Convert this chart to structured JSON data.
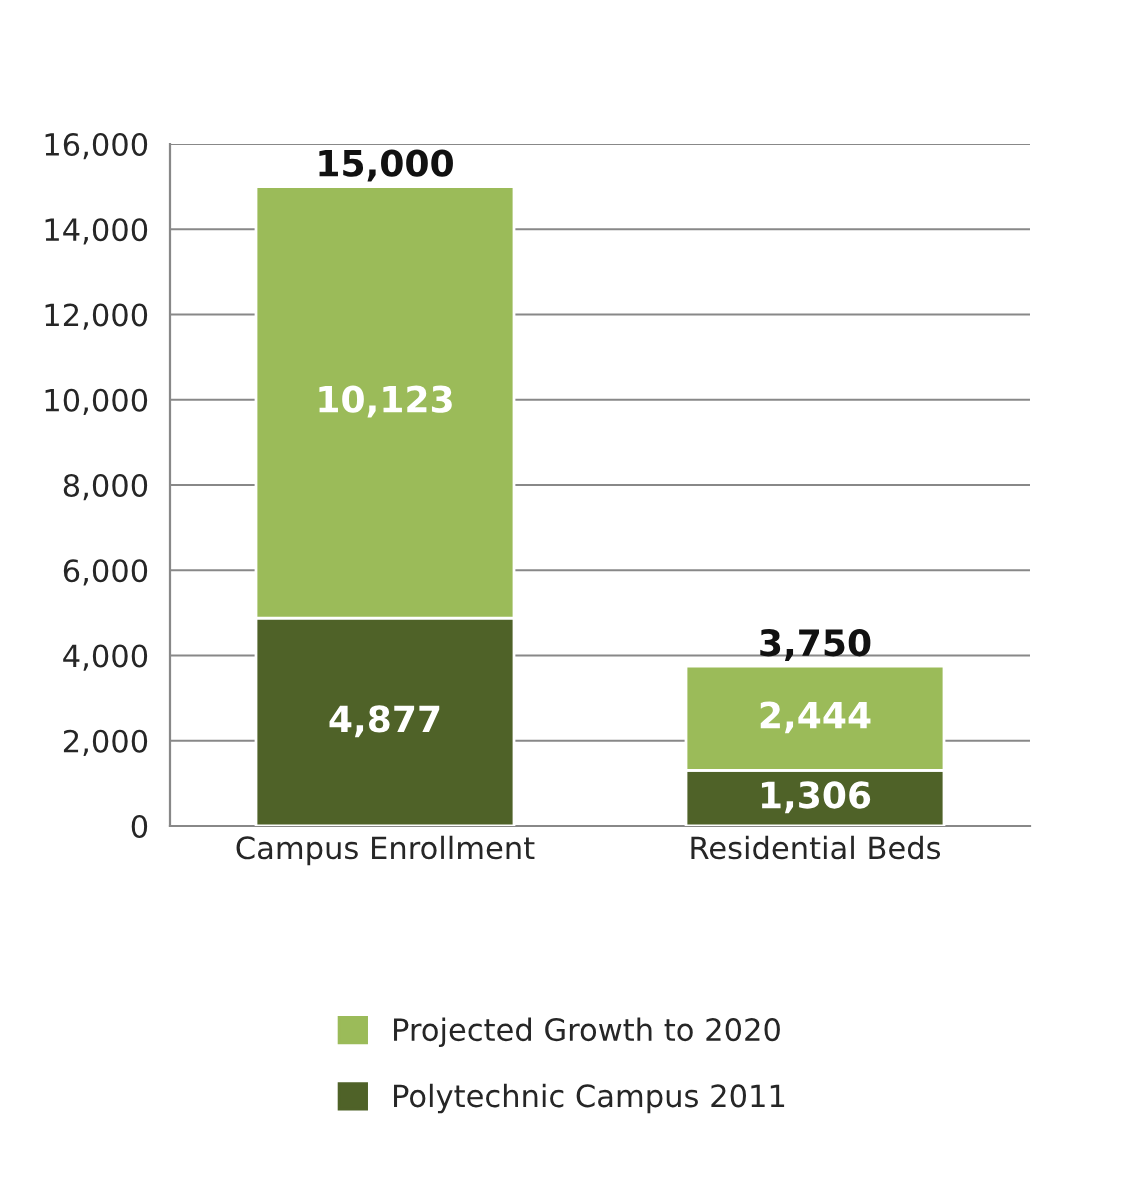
{
  "chart_data": {
    "type": "bar",
    "stacked": true,
    "categories": [
      "Campus Enrollment",
      "Residential Beds"
    ],
    "series": [
      {
        "name": "Polytechnic Campus 2011",
        "color": "#4f6228",
        "values": [
          4877,
          1306
        ],
        "value_labels": [
          "4,877",
          "1,306"
        ]
      },
      {
        "name": "Projected Growth to 2020",
        "color": "#9bbb59",
        "values": [
          10123,
          2444
        ],
        "value_labels": [
          "10,123",
          "2,444"
        ]
      }
    ],
    "totals": [
      "15,000",
      "3,750"
    ],
    "ylim": [
      0,
      16000
    ],
    "yticks": [
      {
        "value": 0,
        "label": "0"
      },
      {
        "value": 2000,
        "label": "2,000"
      },
      {
        "value": 4000,
        "label": "4,000"
      },
      {
        "value": 6000,
        "label": "6,000"
      },
      {
        "value": 8000,
        "label": "8,000"
      },
      {
        "value": 10000,
        "label": "10,000"
      },
      {
        "value": 12000,
        "label": "12,000"
      },
      {
        "value": 14000,
        "label": "14,000"
      },
      {
        "value": 16000,
        "label": "16,000"
      }
    ],
    "grid": "y",
    "legend": "bottom"
  }
}
